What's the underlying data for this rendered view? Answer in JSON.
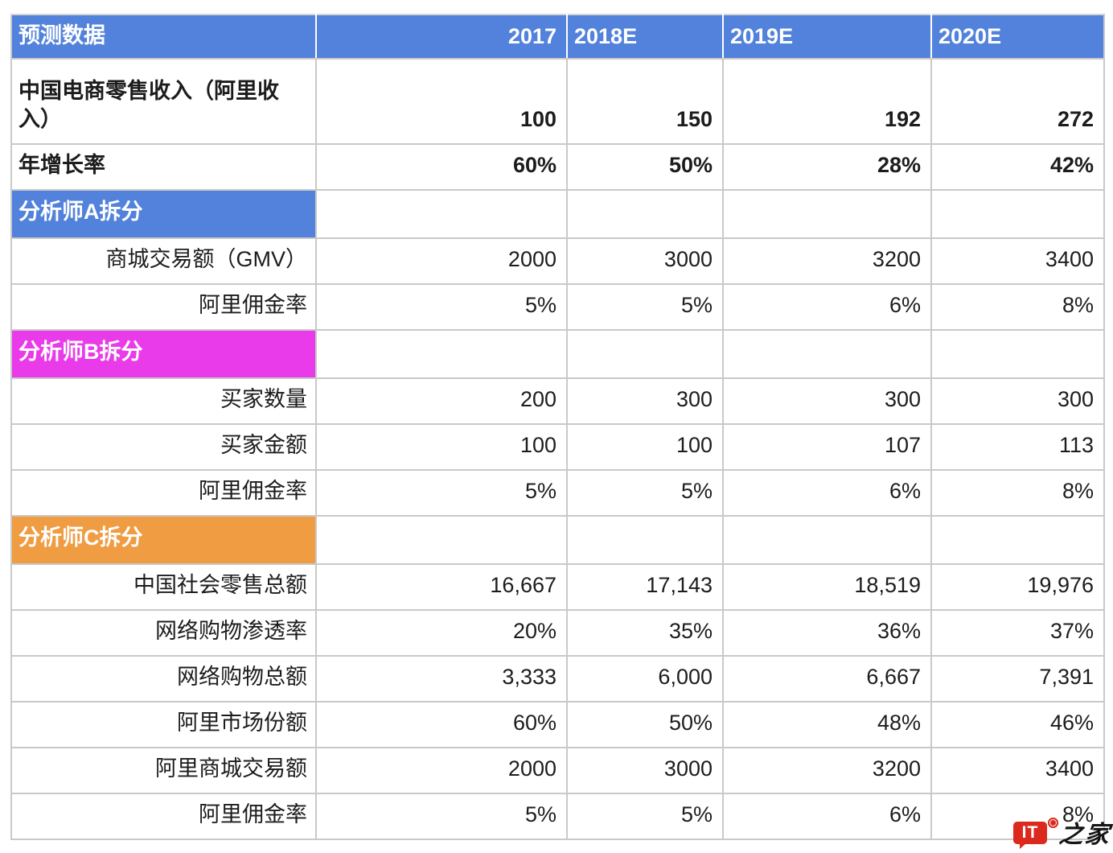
{
  "colors": {
    "header_blue": "#5282DB",
    "section_a_blue": "#5282DB",
    "section_b_magenta": "#E93BE9",
    "section_c_orange": "#F09C42",
    "gridline_gray": "#C9C9C9",
    "header_text": "#FFFFFF",
    "body_text": "#1C1C1C",
    "watermark_red": "#DC291E"
  },
  "table": {
    "header_cells": [
      {
        "label": "预测数据",
        "align": "left"
      },
      {
        "label": "2017",
        "align": "right"
      },
      {
        "label": "2018E",
        "align": "left"
      },
      {
        "label": "2019E",
        "align": "left"
      },
      {
        "label": "2020E",
        "align": "left"
      }
    ],
    "rows": [
      {
        "type": "data-bold",
        "label": "中国电商零售收入（阿里收入）",
        "label_align": "left",
        "values": [
          "100",
          "150",
          "192",
          "272"
        ]
      },
      {
        "type": "data-bold",
        "label": "年增长率",
        "label_align": "left",
        "values": [
          "60%",
          "50%",
          "28%",
          "42%"
        ]
      },
      {
        "type": "section",
        "label": "分析师A拆分",
        "color": "#5282DB"
      },
      {
        "type": "data",
        "label": "商城交易额（GMV）",
        "label_align": "right",
        "values": [
          "2000",
          "3000",
          "3200",
          "3400"
        ]
      },
      {
        "type": "data",
        "label": "阿里佣金率",
        "label_align": "right",
        "values": [
          "5%",
          "5%",
          "6%",
          "8%"
        ]
      },
      {
        "type": "section",
        "label": "分析师B拆分",
        "color": "#E93BE9"
      },
      {
        "type": "data",
        "label": "买家数量",
        "label_align": "right",
        "values": [
          "200",
          "300",
          "300",
          "300"
        ]
      },
      {
        "type": "data",
        "label": "买家金额",
        "label_align": "right",
        "values": [
          "100",
          "100",
          "107",
          "113"
        ]
      },
      {
        "type": "data",
        "label": "阿里佣金率",
        "label_align": "right",
        "values": [
          "5%",
          "5%",
          "6%",
          "8%"
        ]
      },
      {
        "type": "section",
        "label": "分析师C拆分",
        "color": "#F09C42"
      },
      {
        "type": "data",
        "label": "中国社会零售总额",
        "label_align": "right",
        "values": [
          "16,667",
          "17,143",
          "18,519",
          "19,976"
        ]
      },
      {
        "type": "data",
        "label": "网络购物渗透率",
        "label_align": "right",
        "values": [
          "20%",
          "35%",
          "36%",
          "37%"
        ]
      },
      {
        "type": "data",
        "label": "网络购物总额",
        "label_align": "right",
        "values": [
          "3,333",
          "6,000",
          "6,667",
          "7,391"
        ]
      },
      {
        "type": "data",
        "label": "阿里市场份额",
        "label_align": "right",
        "values": [
          "60%",
          "50%",
          "48%",
          "46%"
        ]
      },
      {
        "type": "data",
        "label": "阿里商城交易额",
        "label_align": "right",
        "values": [
          "2000",
          "3000",
          "3200",
          "3400"
        ]
      },
      {
        "type": "data",
        "label": "阿里佣金率",
        "label_align": "right",
        "values": [
          "5%",
          "5%",
          "6%",
          "8%"
        ]
      }
    ]
  },
  "chart_data": {
    "type": "table",
    "title": "预测数据",
    "columns": [
      "预测数据",
      "2017",
      "2018E",
      "2019E",
      "2020E"
    ],
    "sections": [
      {
        "name": "",
        "rows": [
          [
            "中国电商零售收入（阿里收入）",
            100,
            150,
            192,
            272
          ],
          [
            "年增长率",
            "60%",
            "50%",
            "28%",
            "42%"
          ]
        ]
      },
      {
        "name": "分析师A拆分",
        "rows": [
          [
            "商城交易额（GMV）",
            2000,
            3000,
            3200,
            3400
          ],
          [
            "阿里佣金率",
            "5%",
            "5%",
            "6%",
            "8%"
          ]
        ]
      },
      {
        "name": "分析师B拆分",
        "rows": [
          [
            "买家数量",
            200,
            300,
            300,
            300
          ],
          [
            "买家金额",
            100,
            100,
            107,
            113
          ],
          [
            "阿里佣金率",
            "5%",
            "5%",
            "6%",
            "8%"
          ]
        ]
      },
      {
        "name": "分析师C拆分",
        "rows": [
          [
            "中国社会零售总额",
            "16,667",
            "17,143",
            "18,519",
            "19,976"
          ],
          [
            "网络购物渗透率",
            "20%",
            "35%",
            "36%",
            "37%"
          ],
          [
            "网络购物总额",
            "3,333",
            "6,000",
            "6,667",
            "7,391"
          ],
          [
            "阿里市场份额",
            "60%",
            "50%",
            "48%",
            "46%"
          ],
          [
            "阿里商城交易额",
            2000,
            3000,
            3200,
            3400
          ],
          [
            "阿里佣金率",
            "5%",
            "5%",
            "6%",
            "8%"
          ]
        ]
      }
    ]
  },
  "watermark": {
    "badge_text": "IT",
    "script_text": "之家"
  }
}
